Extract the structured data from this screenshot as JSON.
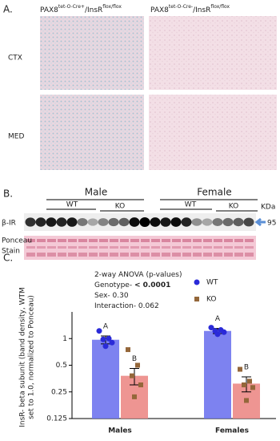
{
  "panel_a": {
    "label": "A.",
    "columns": [
      {
        "base": "PAX8",
        "sup": "tet-O-Cre+",
        "base2": "/InsR",
        "sup2": "flox/flox"
      },
      {
        "base": "PAX8",
        "sup": "tet-O-Cre-",
        "base2": "/InsR",
        "sup2": "flox/flox"
      }
    ],
    "rows": [
      "CTX",
      "MED"
    ]
  },
  "panel_b": {
    "label": "B.",
    "groups": [
      "Male",
      "Female"
    ],
    "subgroups": [
      "WT",
      "KO",
      "WT",
      "KO"
    ],
    "unit": "KDa",
    "band_label": "β-IR",
    "size": "95",
    "loading_label": [
      "Ponceau",
      "Stain"
    ]
  },
  "panel_c": {
    "label": "C."
  },
  "chart_data": {
    "type": "bar",
    "log_scale": true,
    "y_label": [
      "InsR- beta subunit (band density, WTM",
      "set to 1.0, normalized to Ponceau)"
    ],
    "annotation": [
      {
        "text": "2-way ANOVA (p-values)"
      },
      {
        "text": "Genotype- ",
        "bold": "< 0.0001"
      },
      {
        "text": "Sex- 0.30"
      },
      {
        "text": "Interaction- 0.062"
      }
    ],
    "categories": [
      "Males",
      "Females"
    ],
    "ylim": [
      0.125,
      2
    ],
    "yticks": [
      0.125,
      0.25,
      0.5,
      1
    ],
    "series": [
      {
        "name": "WT",
        "color": "#6f74ee",
        "point_color": "#2a2ad8",
        "marker": "circle",
        "values": [
          0.97,
          1.22
        ],
        "errors": [
          0.1,
          0.08
        ],
        "letters": [
          "A",
          "A"
        ],
        "points": [
          [
            1.22,
            1.0,
            0.98,
            0.9,
            0.82
          ],
          [
            1.33,
            1.25,
            1.22,
            1.18,
            1.12
          ]
        ]
      },
      {
        "name": "KO",
        "color": "#ec8a86",
        "point_color": "#94673a",
        "marker": "square",
        "values": [
          0.38,
          0.31
        ],
        "errors": [
          0.08,
          0.06
        ],
        "letters": [
          "B",
          "B"
        ],
        "points": [
          [
            0.75,
            0.5,
            0.38,
            0.3,
            0.22
          ],
          [
            0.45,
            0.33,
            0.3,
            0.28,
            0.2
          ]
        ]
      }
    ]
  }
}
